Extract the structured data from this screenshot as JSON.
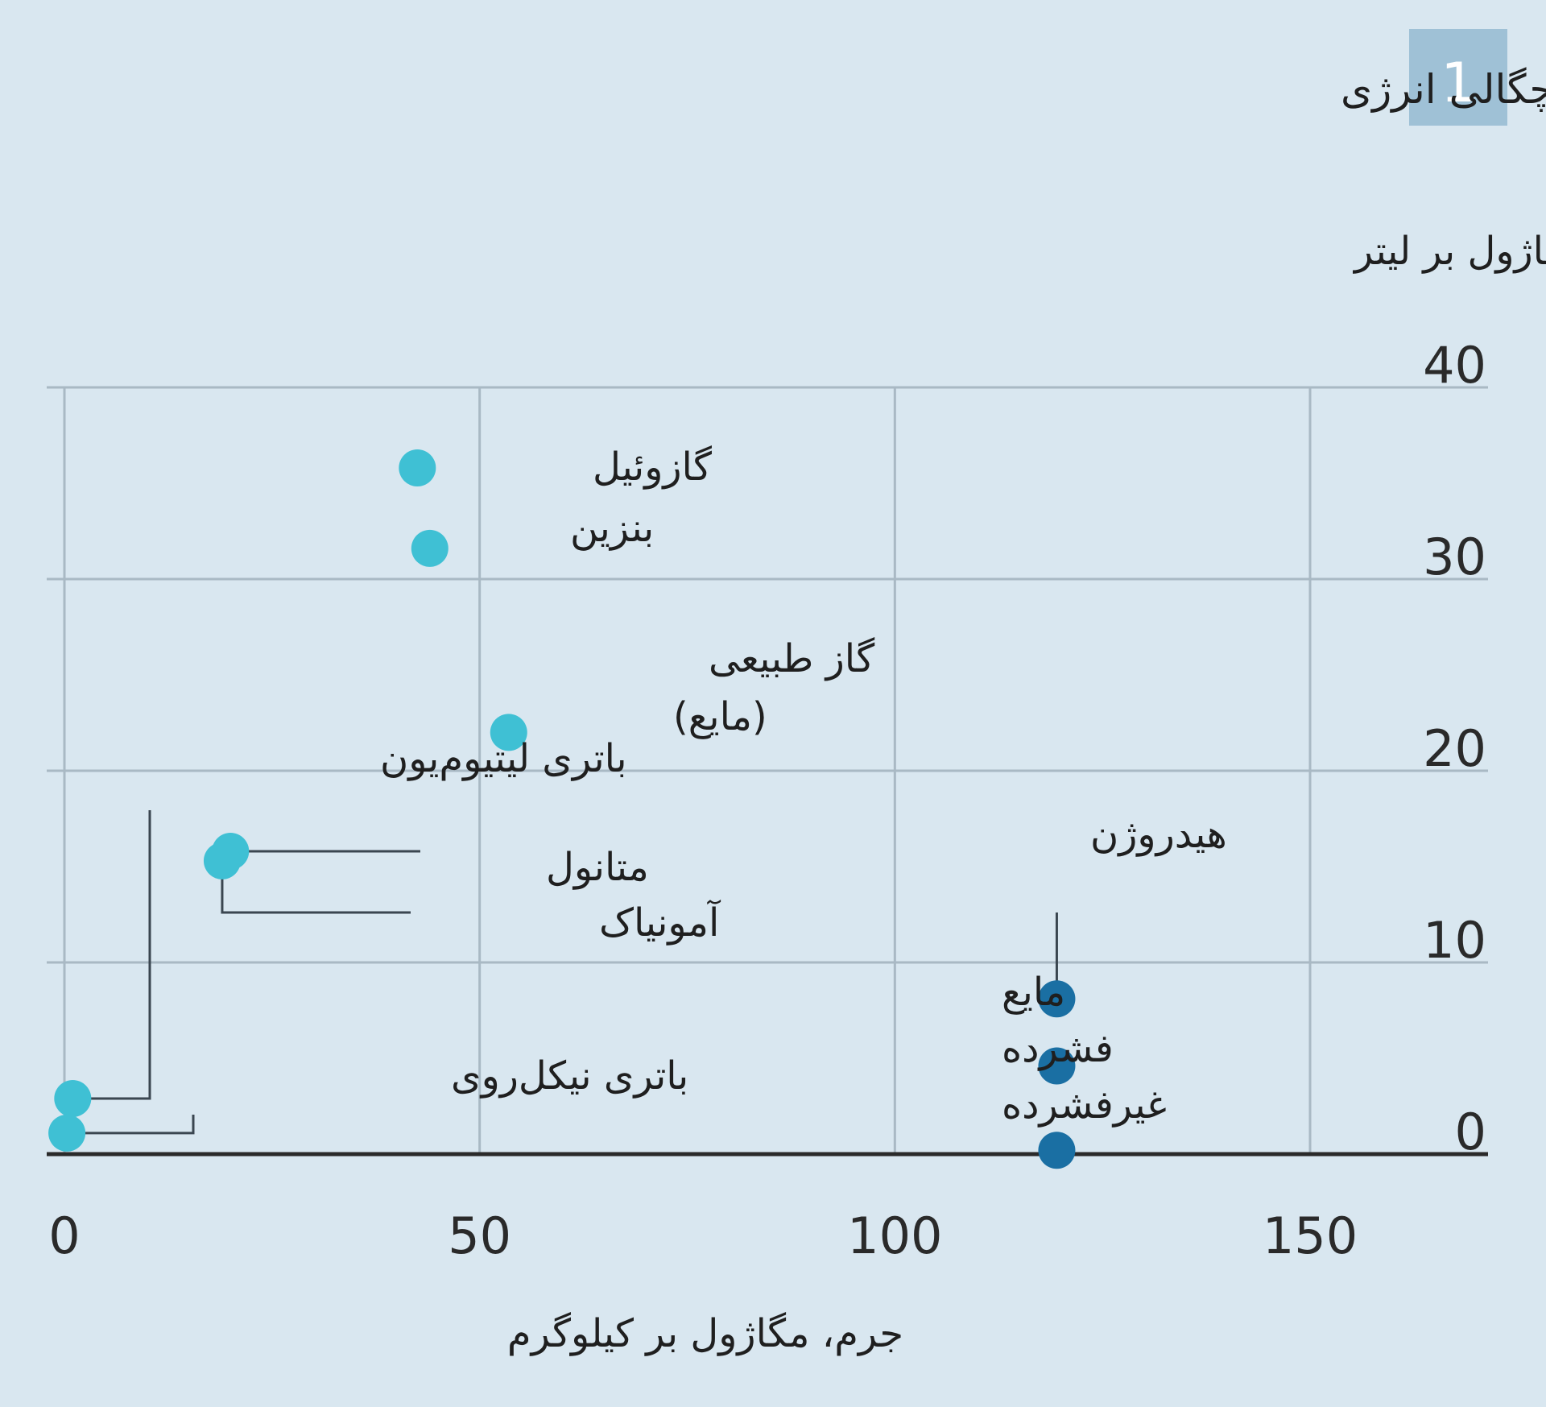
{
  "figure_number": "1",
  "chart_data": {
    "type": "scatter",
    "title": "چگالی انرژی",
    "xlabel": "جرم، مگاژول بر کیلوگرم",
    "ylabel": "حجم، مگاژول بر لیتر",
    "xlim": [
      0,
      170
    ],
    "ylim": [
      0,
      40
    ],
    "x_ticks": [
      "0",
      "50",
      "100",
      "150"
    ],
    "y_ticks": [
      "0",
      "10",
      "20",
      "30",
      "40"
    ],
    "grid": true,
    "colors": {
      "fuel": "#3fc0d4",
      "hydrogen": "#1a6fa3",
      "grid": "#a9b9c4",
      "axis": "#2a2a2a",
      "badge": "#9fc1d6"
    },
    "points": [
      {
        "id": "diesel",
        "label": "گازوئیل",
        "x": 42.5,
        "y": 35.8,
        "group": "fuel"
      },
      {
        "id": "gasoline",
        "label": "بنزین",
        "x": 44,
        "y": 31.6,
        "group": "fuel"
      },
      {
        "id": "lng",
        "label": "گاز طبیعی",
        "label2": "(مایع)",
        "x": 53.5,
        "y": 22,
        "group": "fuel"
      },
      {
        "id": "methanol",
        "label": "متانول",
        "x": 20,
        "y": 15.8,
        "group": "fuel"
      },
      {
        "id": "ammonia",
        "label": "آمونیاک",
        "x": 19,
        "y": 15.3,
        "group": "fuel"
      },
      {
        "id": "li_ion",
        "label": "باتری لیتیوم‌یون",
        "x": 1,
        "y": 2.9,
        "group": "fuel"
      },
      {
        "id": "nizn",
        "label": "باتری نیکل‌روی",
        "x": 0.3,
        "y": 1.1,
        "group": "fuel"
      },
      {
        "id": "h2_liquid",
        "label": "مایع",
        "x": 119.5,
        "y": 8.1,
        "group": "hydrogen"
      },
      {
        "id": "h2_compressed",
        "label": "فشرده",
        "x": 119.5,
        "y": 4.6,
        "group": "hydrogen"
      },
      {
        "id": "h2_uncompressed",
        "label": "غیرفشرده",
        "x": 119.5,
        "y": 0.2,
        "group": "hydrogen"
      }
    ],
    "annotations": {
      "hydrogen": "هیدروژن"
    }
  }
}
